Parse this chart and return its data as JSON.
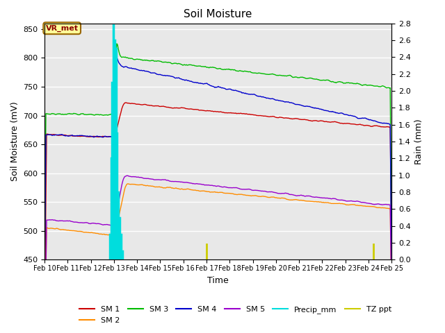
{
  "title": "Soil Moisture",
  "xlabel": "Time",
  "ylabel_left": "Soil Moisture (mV)",
  "ylabel_right": "Rain (mm)",
  "ylim_left": [
    450,
    860
  ],
  "ylim_right": [
    0.0,
    2.8
  ],
  "date_start": 10,
  "date_end": 25,
  "background_color": "#e8e8e8",
  "annotation_label": "VR_met",
  "colors": {
    "SM1": "#cc0000",
    "SM2": "#ff8c00",
    "SM3": "#00bb00",
    "SM4": "#0000cc",
    "SM5": "#9900cc",
    "Precip": "#00dddd",
    "TZ_ppt": "#cccc00"
  },
  "precip_t": [
    12.82,
    12.87,
    12.92,
    12.97,
    13.02,
    13.05,
    13.08,
    13.12,
    13.18,
    13.25,
    13.32,
    13.38
  ],
  "precip_v": [
    0.3,
    1.2,
    2.1,
    2.8,
    2.6,
    1.9,
    2.5,
    1.5,
    0.8,
    0.5,
    0.3,
    0.1
  ],
  "tz_t": [
    17.0,
    24.2
  ],
  "tz_v": [
    0.18,
    0.18
  ]
}
